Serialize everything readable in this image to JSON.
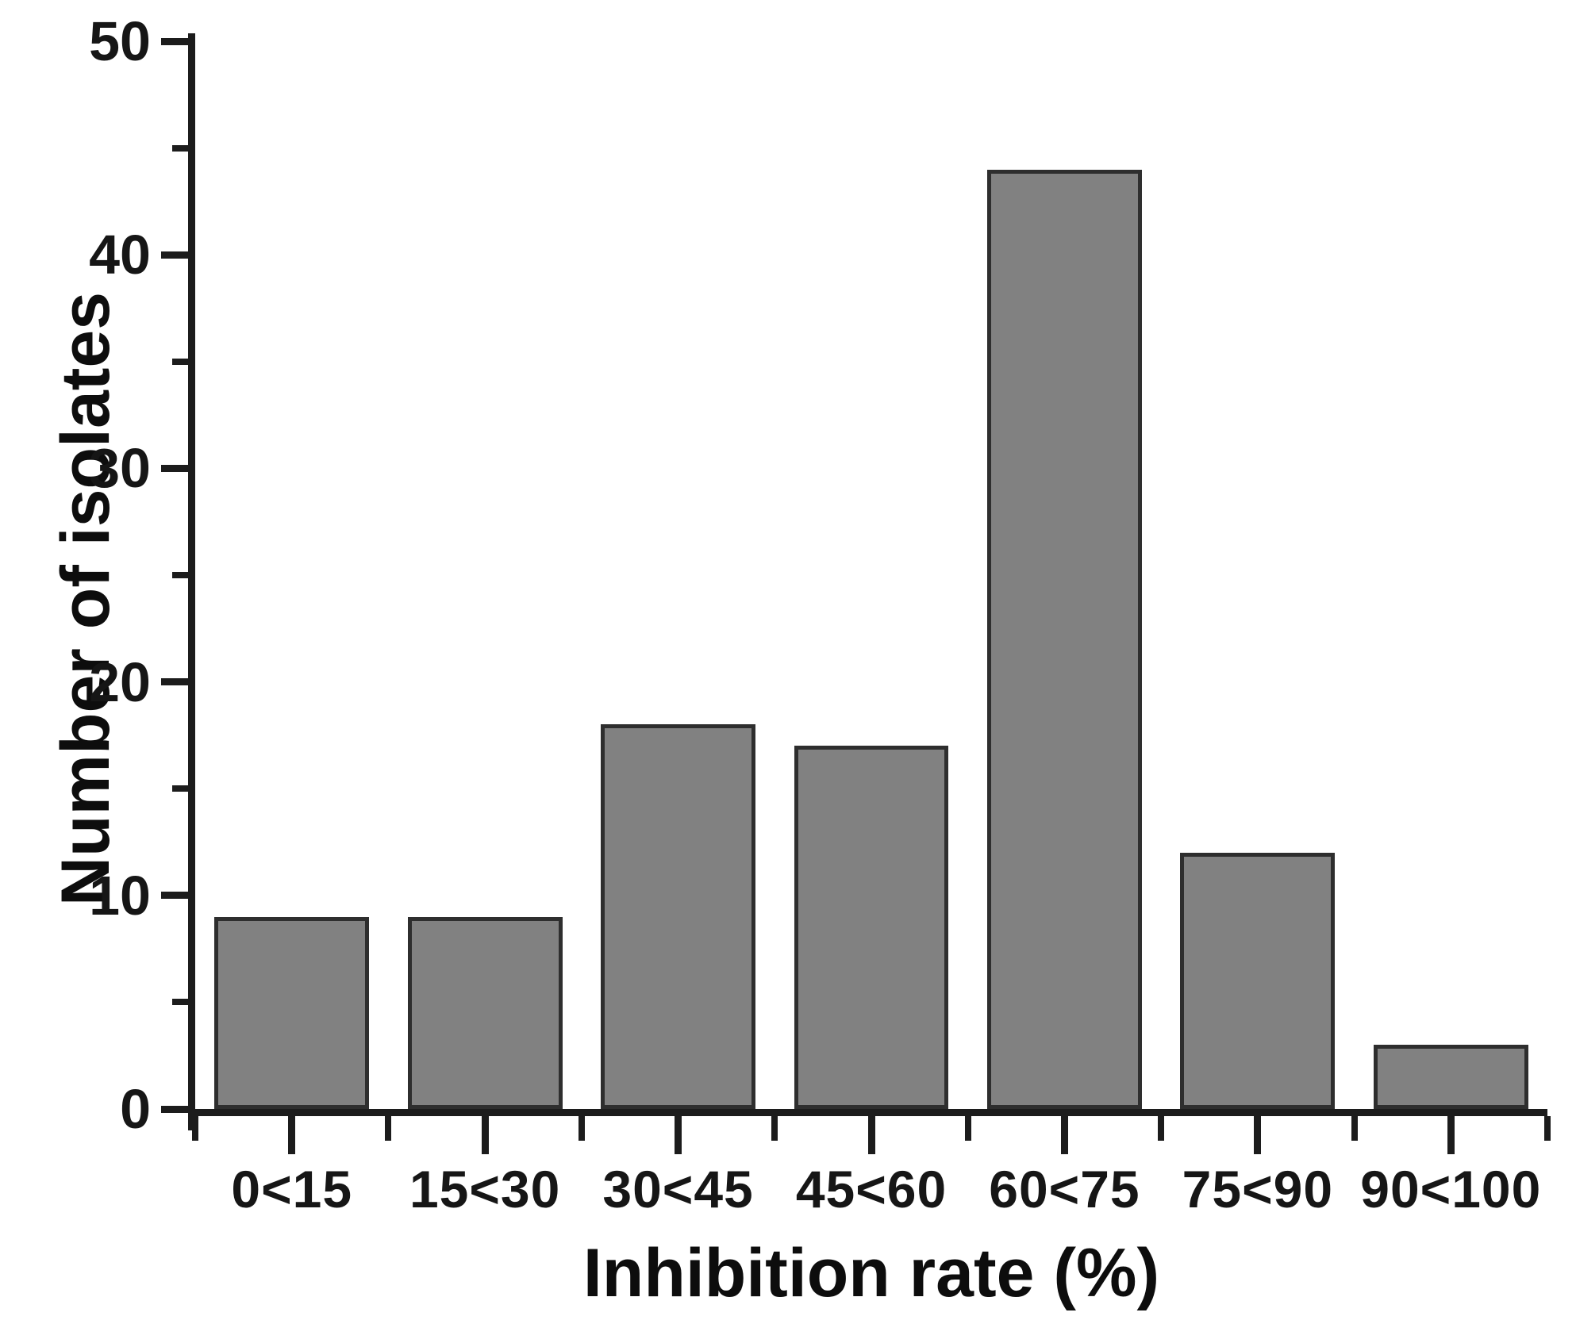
{
  "chart_data": {
    "type": "bar",
    "title": "",
    "xlabel": "Inhibition rate (%)",
    "ylabel": "Number of isolates",
    "categories": [
      "0<15",
      "15<30",
      "30<45",
      "45<60",
      "60<75",
      "75<90",
      "90<100"
    ],
    "values": [
      9,
      9,
      18,
      17,
      44,
      12,
      3
    ],
    "ylim": [
      0,
      50
    ],
    "y_major_ticks": [
      0,
      10,
      20,
      30,
      40,
      50
    ],
    "y_minor_ticks": [
      5,
      15,
      25,
      35,
      45
    ],
    "grid": false,
    "legend": "none",
    "colors": {
      "bar_fill": "#818181",
      "bar_border": "#2e2e2e",
      "axis": "#1c1c1c",
      "text": "#161616",
      "background": "#ffffff"
    }
  }
}
